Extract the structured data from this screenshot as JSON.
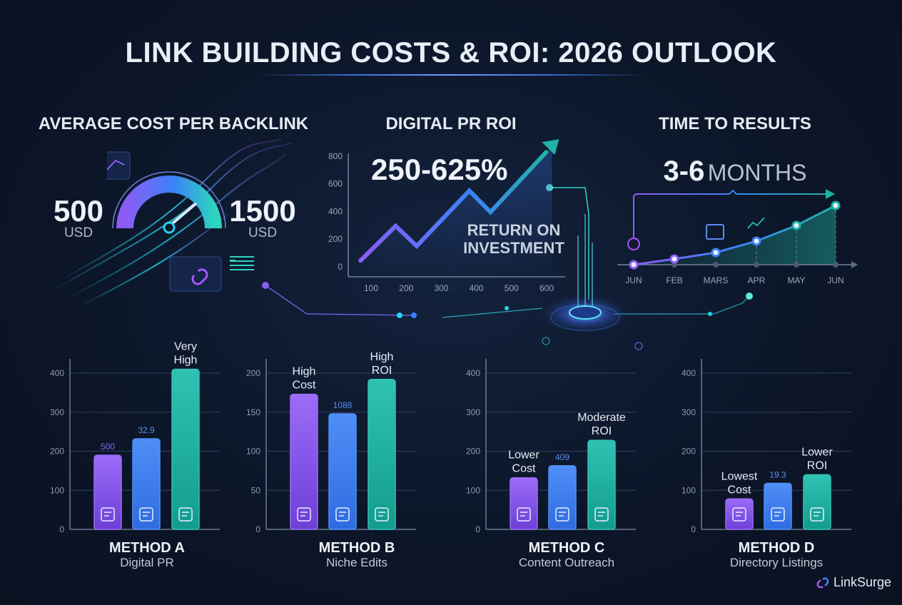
{
  "title": "LINK BUILDING COSTS & ROI: 2026 OUTLOOK",
  "cost": {
    "heading": "AVERAGE COST PER BACKLINK",
    "min_value": "500",
    "min_unit": "USD",
    "max_value": "1500",
    "max_unit": "USD"
  },
  "roi": {
    "heading": "DIGITAL PR ROI",
    "range": "250-625%",
    "label_line1": "RETURN ON",
    "label_line2": "INVESTMENT"
  },
  "time": {
    "heading": "TIME TO RESULTS",
    "range": "3-6",
    "unit": "MONTHS"
  },
  "brand": "LinkSurge",
  "colors": {
    "purple": "#8b5cf6",
    "blue": "#3b82f6",
    "teal": "#20b2a4",
    "bg": "#0c1629"
  },
  "chart_data": [
    {
      "id": "roi",
      "type": "line",
      "title": "DIGITAL PR ROI",
      "x": [
        70,
        170,
        230,
        380,
        440,
        615
      ],
      "y": [
        40,
        290,
        145,
        545,
        390,
        865
      ],
      "xticks": [
        100,
        200,
        300,
        400,
        500,
        600
      ],
      "yticks": [
        0,
        200,
        400,
        600,
        800
      ],
      "xlim": [
        40,
        640
      ],
      "ylim": [
        0,
        880
      ],
      "grid": false
    },
    {
      "id": "timeline",
      "type": "line",
      "title": "TIME TO RESULTS",
      "categories": [
        "JUN",
        "FEB",
        "MARS",
        "APR",
        "MAY",
        "JUN"
      ],
      "values": [
        0,
        8,
        17,
        33,
        55,
        83
      ],
      "ylim": [
        0,
        100
      ]
    },
    {
      "id": "method-a",
      "type": "bar",
      "title": "METHOD A",
      "subtitle": "Digital PR",
      "values": [
        190,
        232,
        410
      ],
      "annotations": [
        "500",
        "32.9",
        "Very High"
      ],
      "icons": [
        "browser-search-icon",
        "megaphone-icon",
        "link-icon"
      ],
      "yticks": [
        0,
        100,
        200,
        300,
        400
      ],
      "ylim": [
        0,
        400
      ]
    },
    {
      "id": "method-b",
      "type": "bar",
      "title": "METHOD B",
      "subtitle": "Niche Edits",
      "values": [
        173,
        148,
        192
      ],
      "annotations": [
        "High Cost",
        "1088",
        "High ROI"
      ],
      "icons": [
        "document-edit-icon",
        "pencil-icon",
        "link-icon"
      ],
      "yticks": [
        0,
        50,
        100,
        150,
        200
      ],
      "ylim": [
        0,
        200
      ]
    },
    {
      "id": "method-c",
      "type": "bar",
      "title": "METHOD C",
      "subtitle": "Content Outreach",
      "values": [
        132,
        163,
        228
      ],
      "annotations": [
        "Lower Cost",
        "409",
        "Moderate ROI"
      ],
      "icons": [
        "megaphone-icon",
        "link-icon",
        "map-icon"
      ],
      "yticks": [
        0,
        100,
        200,
        300,
        400
      ],
      "ylim": [
        0,
        400
      ]
    },
    {
      "id": "method-d",
      "type": "bar",
      "title": "METHOD D",
      "subtitle": "Directory Listings",
      "values": [
        78,
        118,
        140
      ],
      "annotations": [
        "Lowest Cost",
        "19.3",
        "Lower ROI"
      ],
      "icons": [
        "layers-download-icon",
        "listing-icon",
        "globe-icon"
      ],
      "yticks": [
        0,
        100,
        200,
        300,
        400
      ],
      "ylim": [
        0,
        400
      ]
    }
  ]
}
